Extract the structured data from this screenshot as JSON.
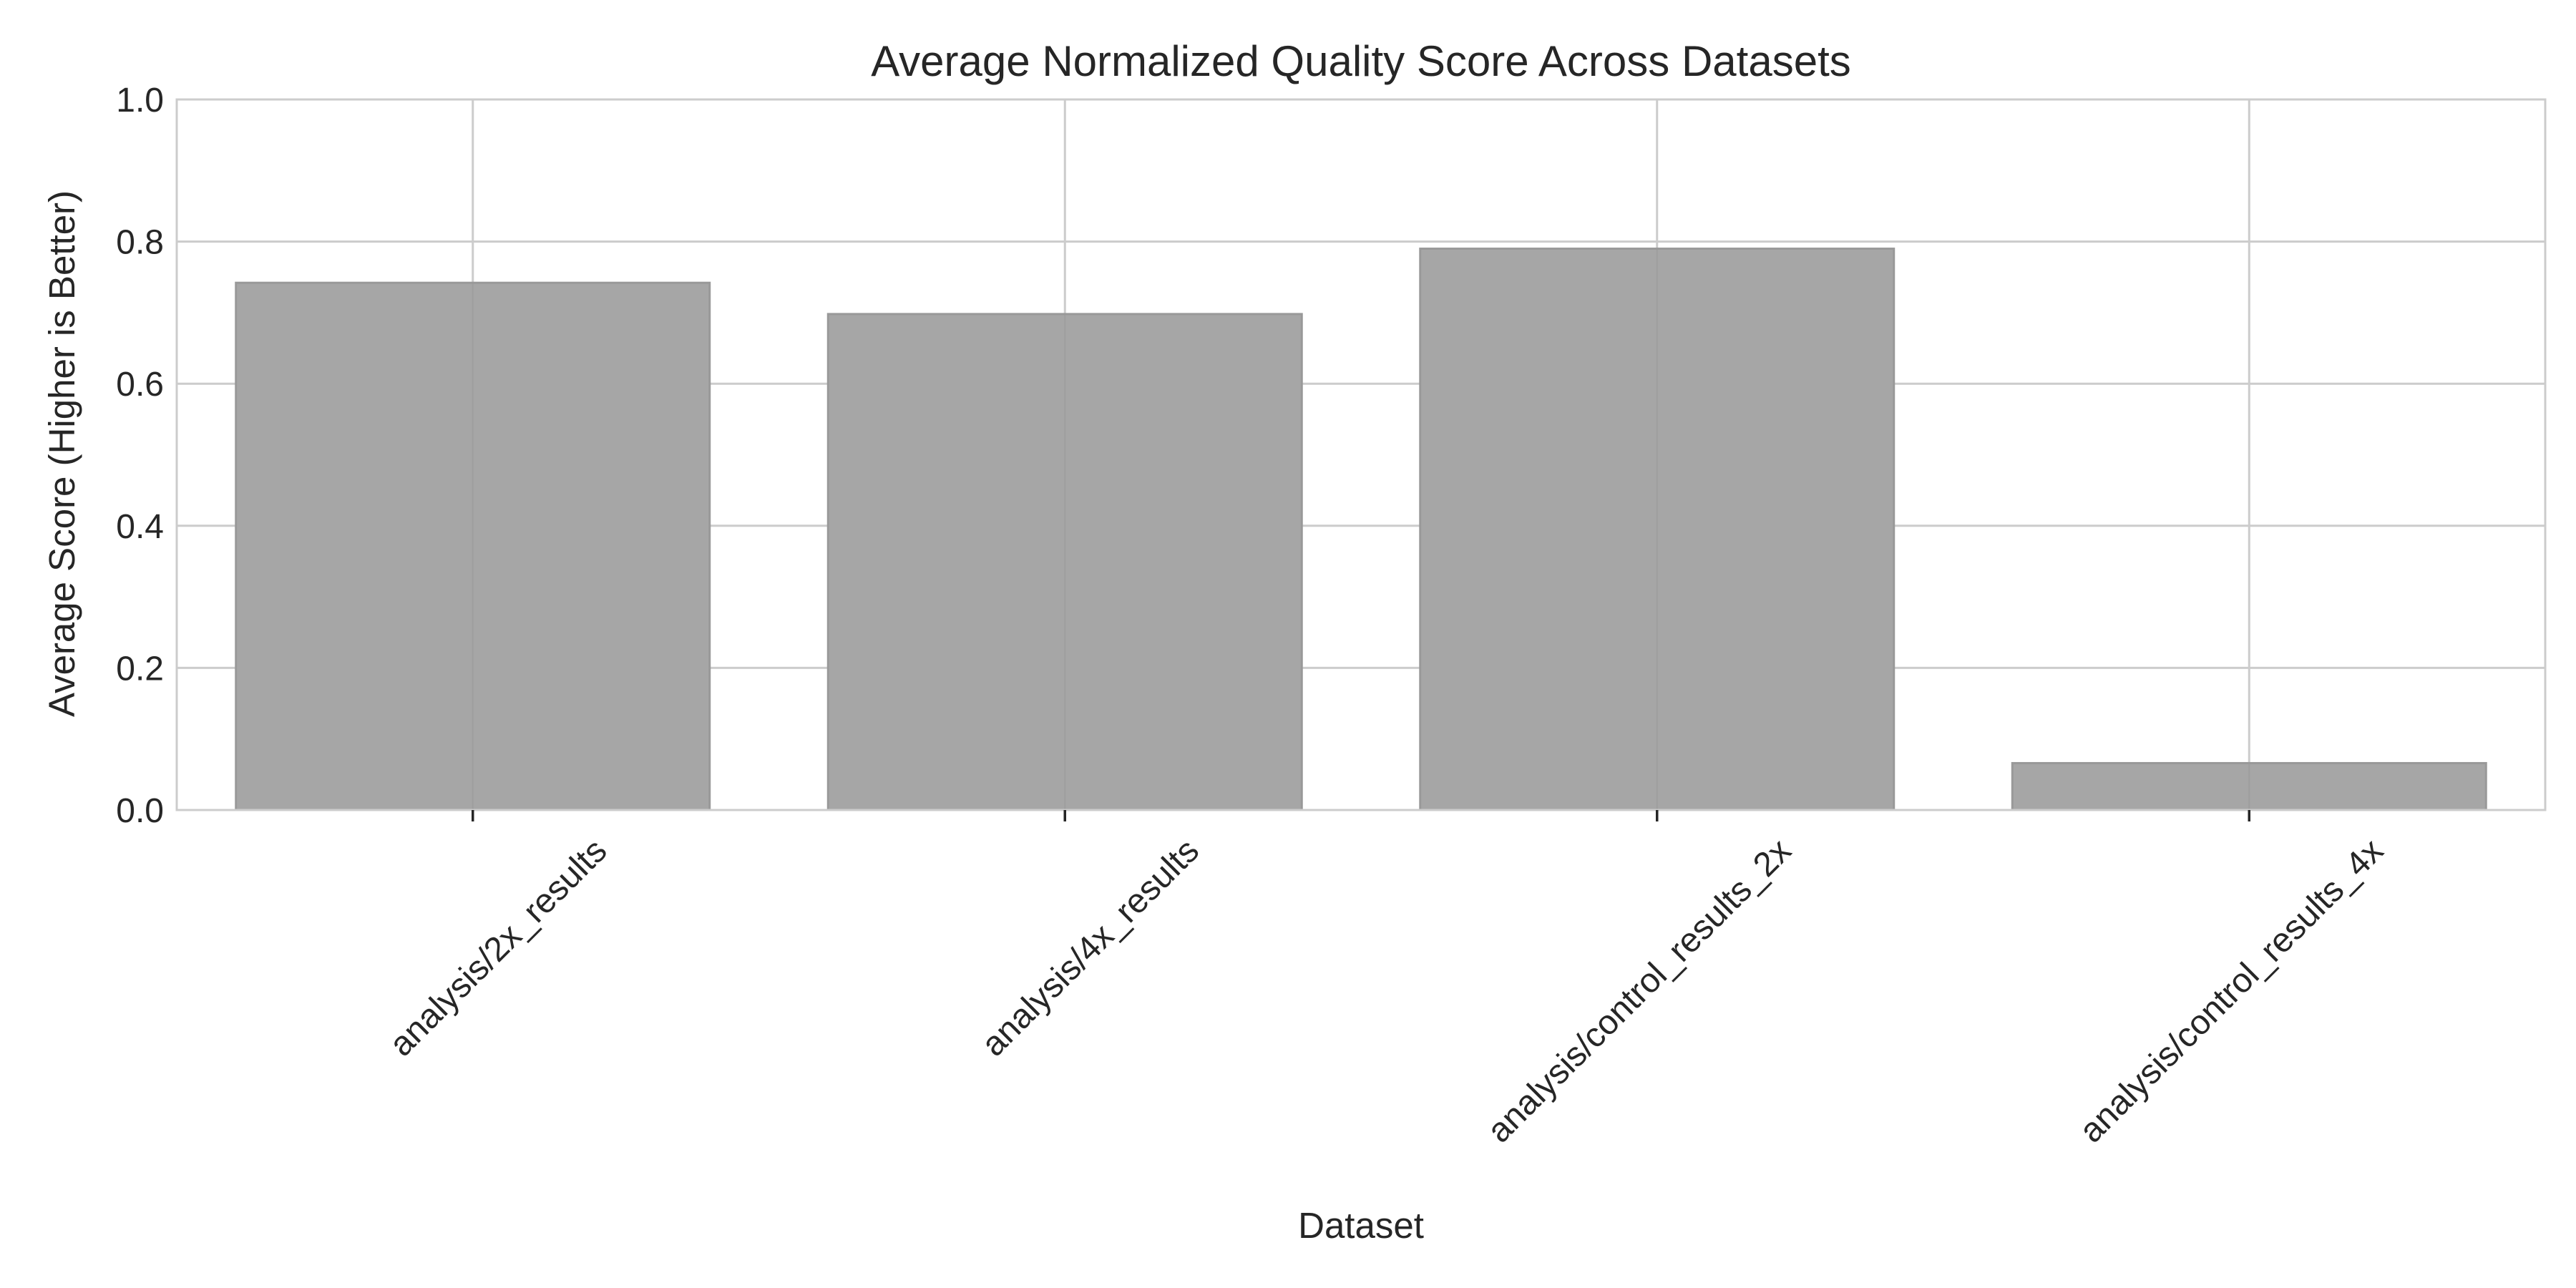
{
  "chart_data": {
    "type": "bar",
    "title": "Average Normalized Quality Score Across Datasets",
    "xlabel": "Dataset",
    "ylabel": "Average Score (Higher is Better)",
    "categories": [
      "analysis/2x_results",
      "analysis/4x_results",
      "analysis/control_results_2x",
      "analysis/control_results_4x"
    ],
    "values": [
      0.742,
      0.698,
      0.79,
      0.066
    ],
    "ylim": [
      0,
      1.0
    ],
    "yticks": [
      0.0,
      0.2,
      0.4,
      0.6,
      0.8,
      1.0
    ],
    "ytick_labels": [
      "0.0",
      "0.2",
      "0.4",
      "0.6",
      "0.8",
      "1.0"
    ],
    "grid": true,
    "colors": {
      "bar_fill": "#a6a6a6",
      "bar_edge": "#999999",
      "grid": "#cccccc",
      "axes_edge": "#cccccc",
      "text": "#262626"
    }
  }
}
